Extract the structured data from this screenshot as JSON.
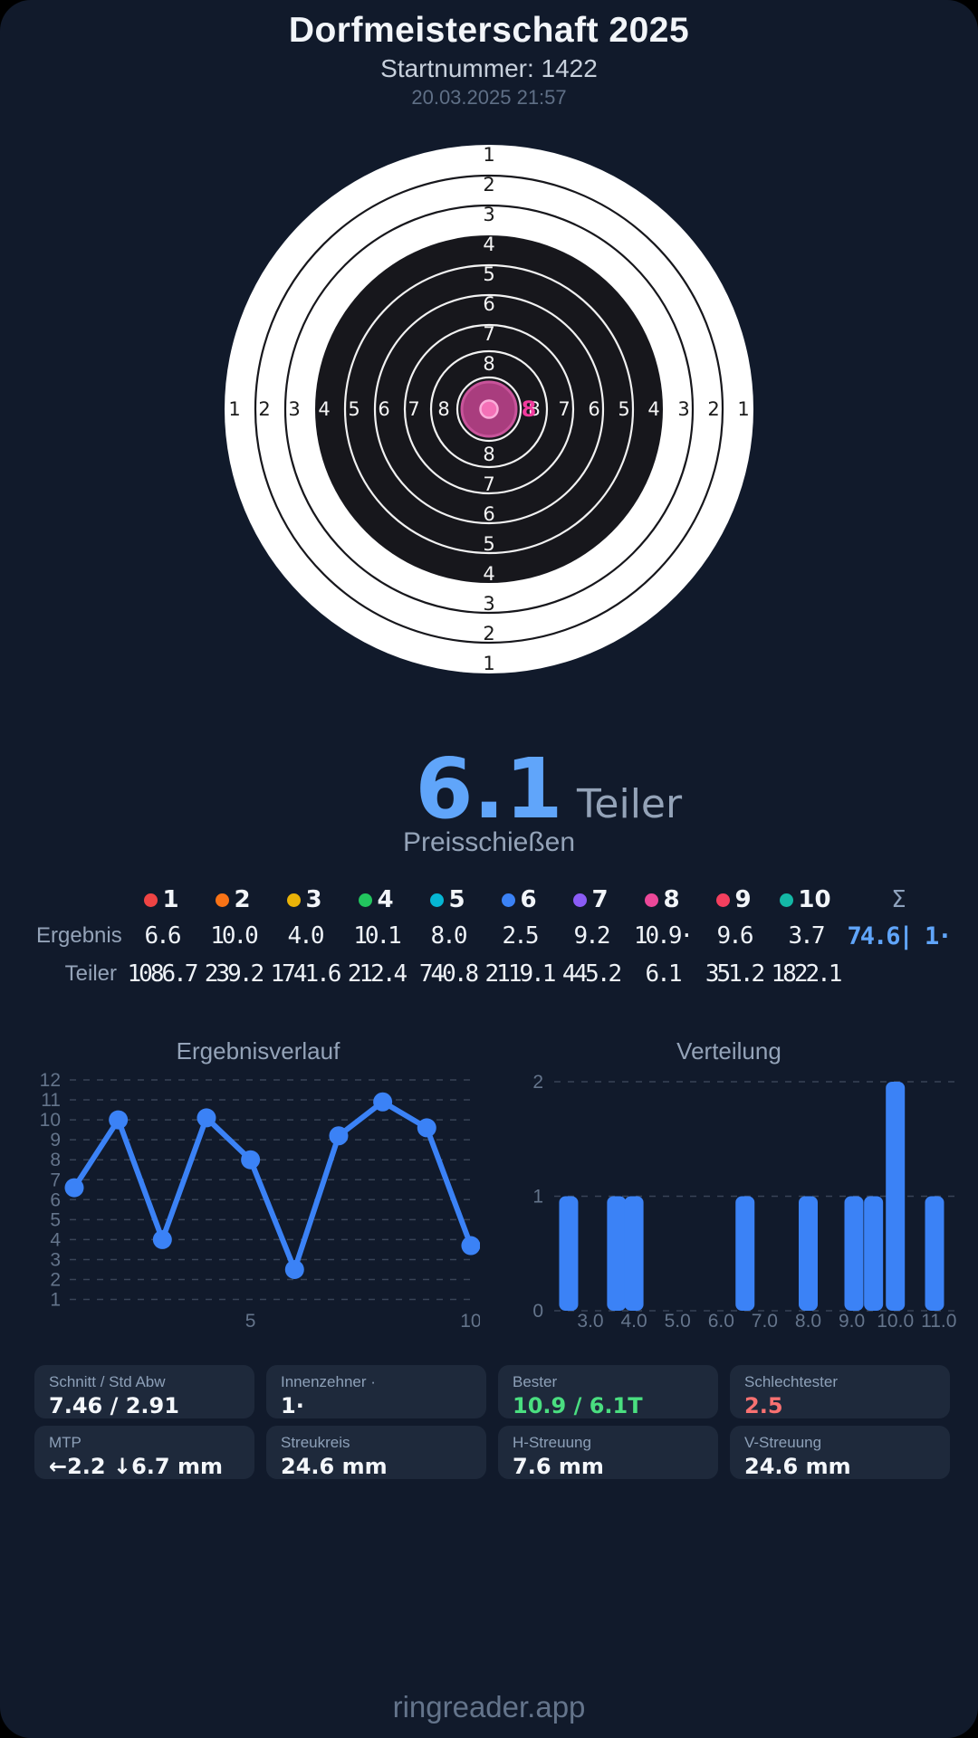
{
  "header": {
    "title": "Dorfmeisterschaft 2025",
    "subtitle": "Startnummer: 1422",
    "datetime": "20.03.2025 21:57"
  },
  "target": {
    "ring_numbers": [
      1,
      2,
      3,
      4,
      5,
      6,
      7,
      8
    ],
    "colors": {
      "paper": "#ffffff",
      "black_zone": "#17171c",
      "ring_stroke_on_white": "#17171c",
      "ring_stroke_on_black": "#f2f2f2",
      "label_on_white": "#1b1b1b",
      "label_on_black": "#f5f5f5"
    },
    "shot_marker": {
      "label": "8",
      "group_fill": "#a93d7e",
      "group_stroke": "#c9549b",
      "dot_fill": "#f471b7",
      "dot_stroke": "#fbadda",
      "label_color": "#f13b9d"
    }
  },
  "score": {
    "value": "6.1",
    "unit": "Teiler",
    "mode": "Preisschießen",
    "value_color": "#60a5fa"
  },
  "table": {
    "row_label_ergebnis": "Ergebnis",
    "row_label_teiler": "Teiler",
    "sum_symbol": "Σ",
    "sum_ergebnis": "74.6| 1·",
    "shots": [
      {
        "nr": "1",
        "color": "#ef4444",
        "ergebnis": "6.6",
        "teiler": "1086.7"
      },
      {
        "nr": "2",
        "color": "#f97316",
        "ergebnis": "10.0",
        "teiler": "239.2"
      },
      {
        "nr": "3",
        "color": "#eab308",
        "ergebnis": "4.0",
        "teiler": "1741.6"
      },
      {
        "nr": "4",
        "color": "#22c55e",
        "ergebnis": "10.1",
        "teiler": "212.4"
      },
      {
        "nr": "5",
        "color": "#06b6d4",
        "ergebnis": "8.0",
        "teiler": "740.8"
      },
      {
        "nr": "6",
        "color": "#3b82f6",
        "ergebnis": "2.5",
        "teiler": "2119.1"
      },
      {
        "nr": "7",
        "color": "#8b5cf6",
        "ergebnis": "9.2",
        "teiler": "445.2"
      },
      {
        "nr": "8",
        "color": "#ec4899",
        "ergebnis": "10.9·",
        "teiler": "6.1"
      },
      {
        "nr": "9",
        "color": "#f43f5e",
        "ergebnis": "9.6",
        "teiler": "351.2"
      },
      {
        "nr": "10",
        "color": "#14b8a6",
        "ergebnis": "3.7",
        "teiler": "1822.1"
      }
    ]
  },
  "chart_data": [
    {
      "type": "line",
      "title": "Ergebnisverlauf",
      "x": [
        1,
        2,
        3,
        4,
        5,
        6,
        7,
        8,
        9,
        10
      ],
      "values": [
        6.6,
        10.0,
        4.0,
        10.1,
        8.0,
        2.5,
        9.2,
        10.9,
        9.6,
        3.7
      ],
      "yticks": [
        1,
        2,
        3,
        4,
        5,
        6,
        7,
        8,
        9,
        10,
        11,
        12
      ],
      "xticks": [
        5,
        10
      ],
      "ylim": [
        0.5,
        12.5
      ],
      "grid": "dashed",
      "legend": "none",
      "line_color": "#3b82f6"
    },
    {
      "type": "bar",
      "title": "Verteilung",
      "bin_centers": [
        2.5,
        3.6,
        4.0,
        6.55,
        8.0,
        9.05,
        9.5,
        10.0,
        10.9
      ],
      "counts": [
        1,
        1,
        1,
        1,
        1,
        1,
        1,
        2,
        1
      ],
      "xticks": [
        "3.0",
        "4.0",
        "5.0",
        "6.0",
        "7.0",
        "8.0",
        "9.0",
        "10.0",
        "11.0"
      ],
      "yticks": [
        0,
        1,
        2
      ],
      "xlim": [
        2.2,
        11.3
      ],
      "ylim": [
        0,
        2
      ],
      "grid": "dashed",
      "legend": "none",
      "bar_color": "#3b82f6"
    }
  ],
  "stats": [
    {
      "label": "Schnitt / Std Abw",
      "value": "7.46 / 2.91",
      "color": "#f4f7fb"
    },
    {
      "label": "Innenzehner ·",
      "value": "1·",
      "color": "#f4f7fb"
    },
    {
      "label": "Bester",
      "value": "10.9 / 6.1T",
      "color": "#4ade80"
    },
    {
      "label": "Schlechtester",
      "value": "2.5",
      "color": "#f87171"
    },
    {
      "label": "MTP",
      "value": "←2.2 ↓6.7 mm",
      "color": "#f4f7fb"
    },
    {
      "label": "Streukreis",
      "value": "24.6 mm",
      "color": "#f4f7fb"
    },
    {
      "label": "H-Streuung",
      "value": "7.6 mm",
      "color": "#f4f7fb"
    },
    {
      "label": "V-Streuung",
      "value": "24.6 mm",
      "color": "#f4f7fb"
    }
  ],
  "footer": {
    "brand": "ringreader.app"
  }
}
